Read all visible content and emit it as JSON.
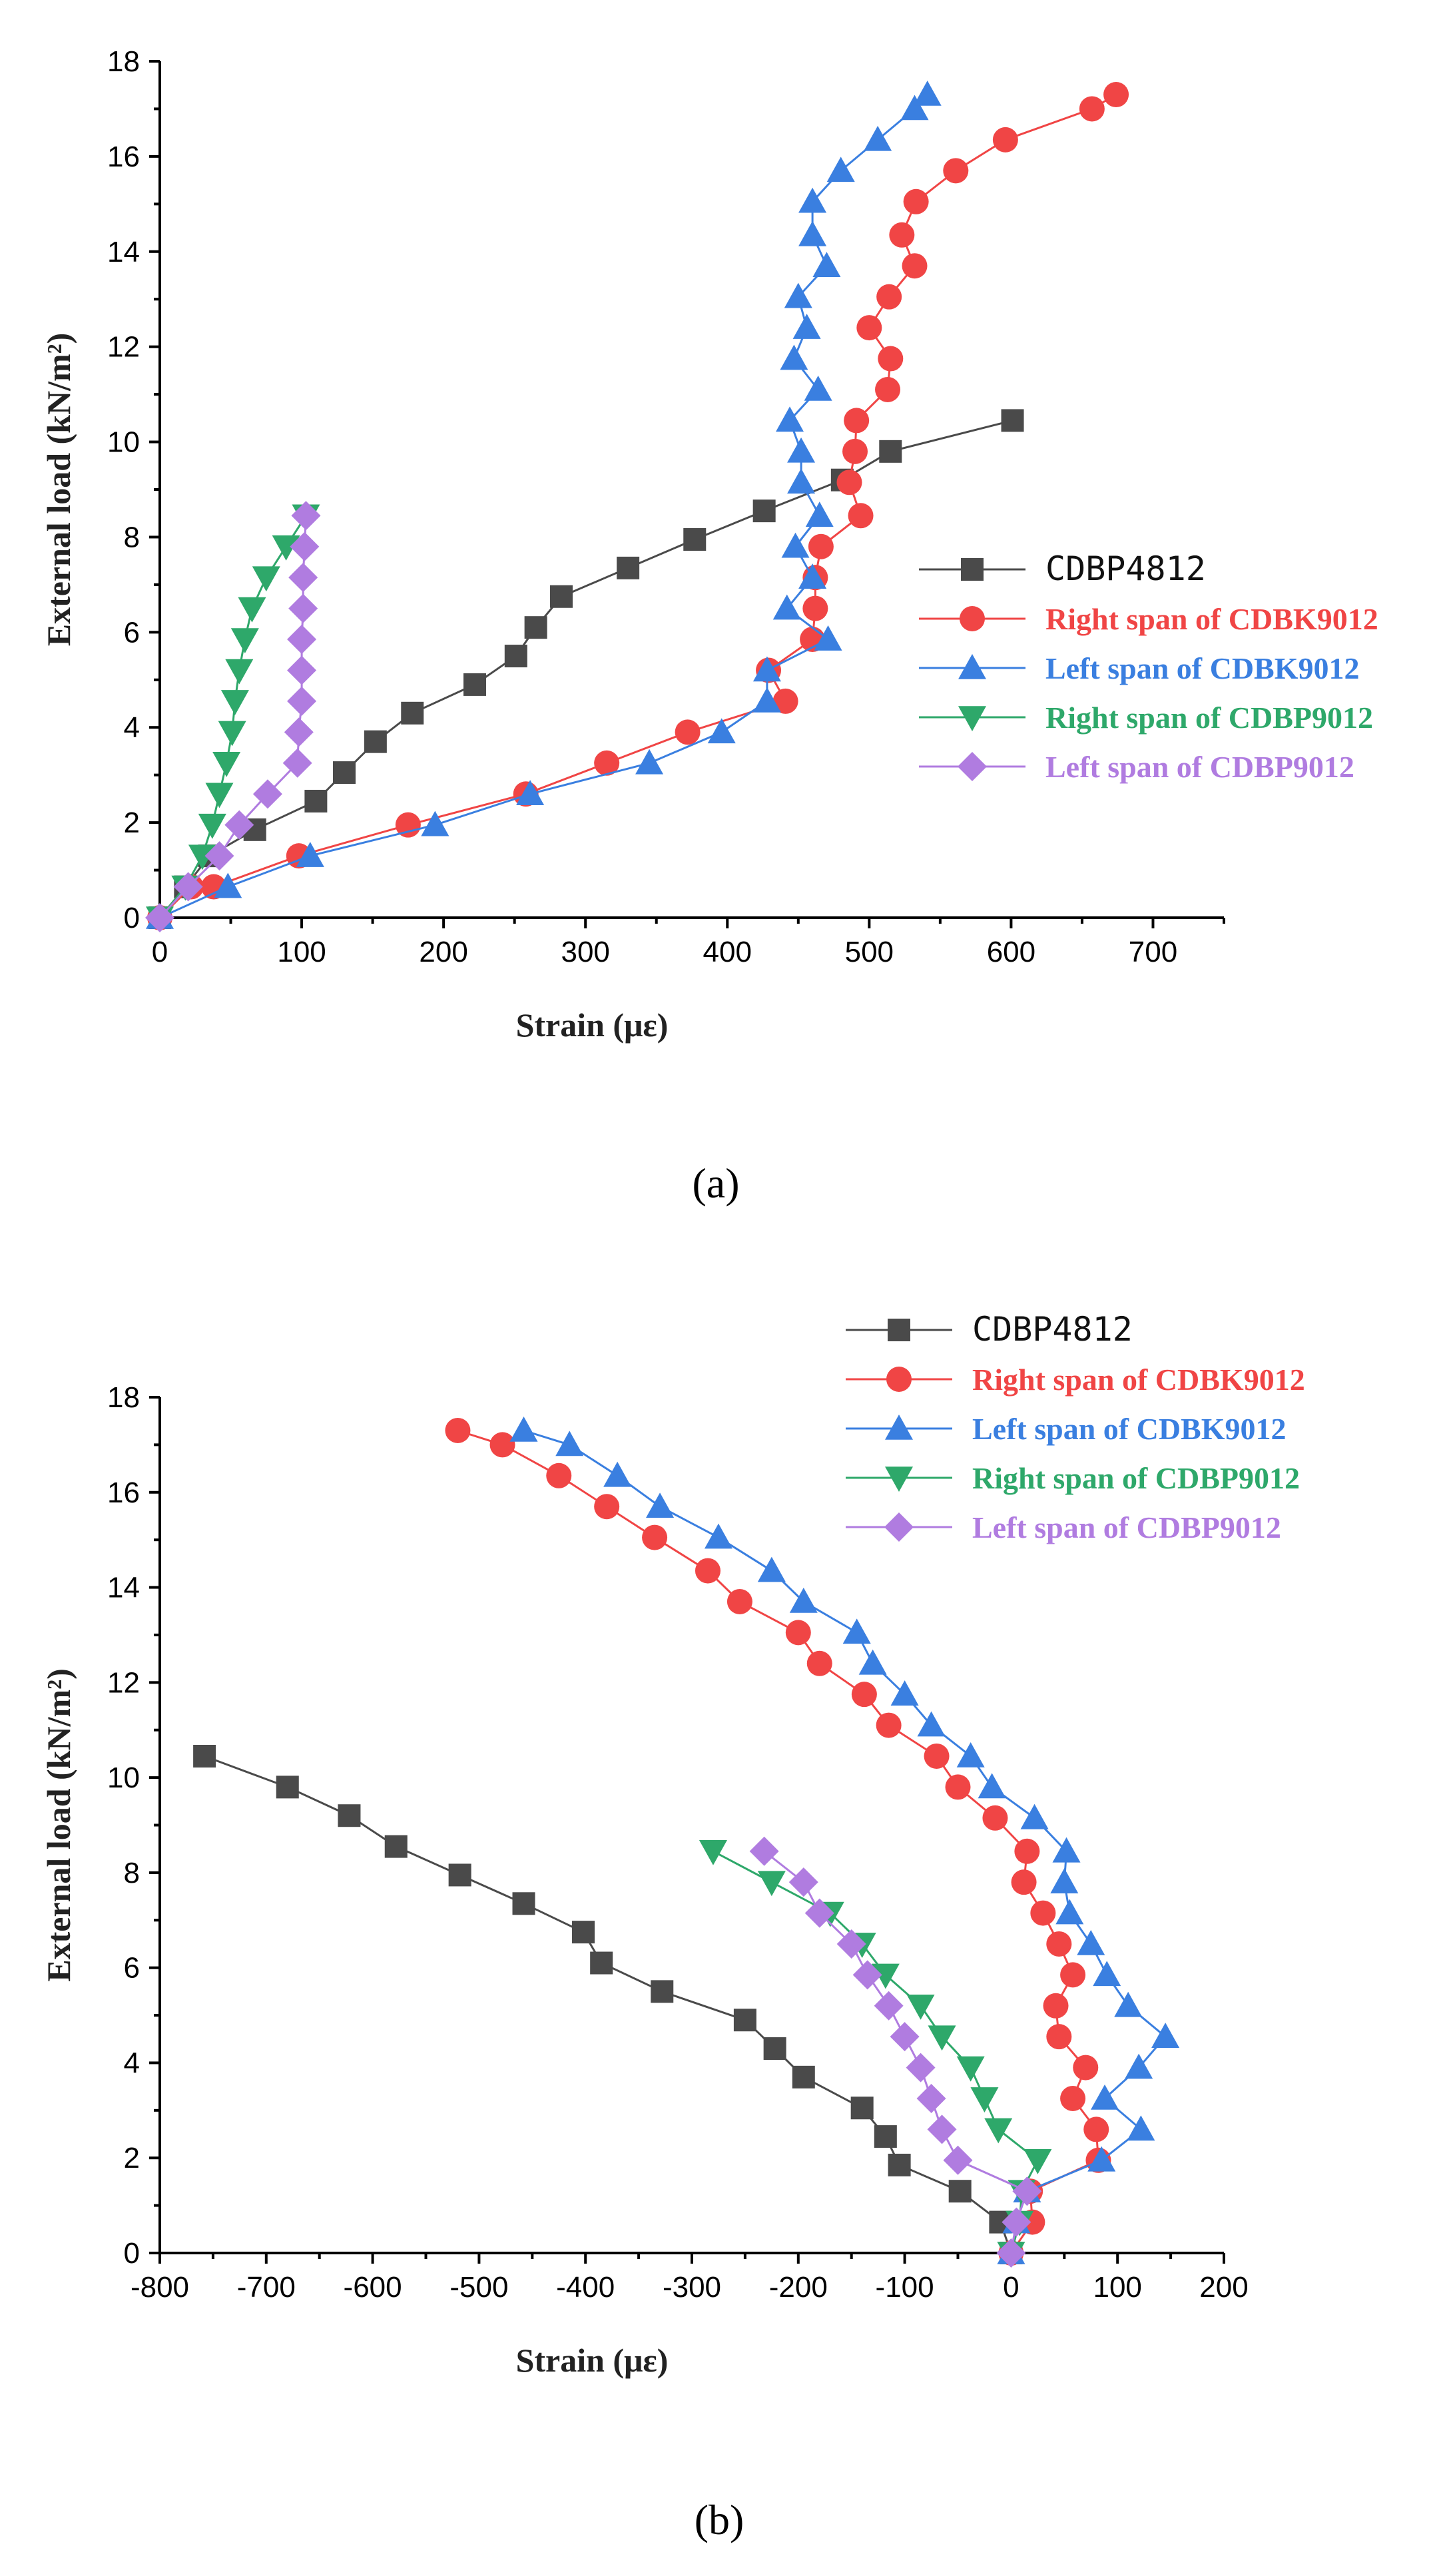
{
  "figure": {
    "caption_a": "(a)",
    "caption_b": "(b)"
  },
  "chart_data": [
    {
      "type": "line",
      "panel": "(a)",
      "title": "",
      "xlabel": "Strain (με)",
      "ylabel": "External load (kN/m²)",
      "xlim": [
        0,
        750
      ],
      "ylim": [
        0,
        18
      ],
      "xticks": [
        0,
        100,
        200,
        300,
        400,
        500,
        600,
        700
      ],
      "yticks": [
        0,
        2,
        4,
        6,
        8,
        10,
        12,
        14,
        16,
        18
      ],
      "legend_position": "center-right",
      "series": [
        {
          "name": "CDBP4812",
          "color": "#4a4a4a",
          "marker": "square",
          "points": [
            [
              0,
              0
            ],
            [
              18,
              0.65
            ],
            [
              35,
              1.3
            ],
            [
              67,
              1.85
            ],
            [
              110,
              2.45
            ],
            [
              130,
              3.05
            ],
            [
              152,
              3.7
            ],
            [
              178,
              4.3
            ],
            [
              222,
              4.9
            ],
            [
              251,
              5.5
            ],
            [
              265,
              6.1
            ],
            [
              283,
              6.75
            ],
            [
              330,
              7.35
            ],
            [
              377,
              7.95
            ],
            [
              426,
              8.55
            ],
            [
              481,
              9.2
            ],
            [
              515,
              9.8
            ],
            [
              601,
              10.45
            ]
          ]
        },
        {
          "name": "Right span of CDBK9012",
          "color": "#f04545",
          "marker": "circle",
          "points": [
            [
              0,
              0
            ],
            [
              22,
              0.65
            ],
            [
              38,
              0.65
            ],
            [
              98,
              1.3
            ],
            [
              175,
              1.95
            ],
            [
              258,
              2.6
            ],
            [
              315,
              3.25
            ],
            [
              372,
              3.9
            ],
            [
              441,
              4.55
            ],
            [
              429,
              5.2
            ],
            [
              460,
              5.85
            ],
            [
              462,
              6.5
            ],
            [
              462,
              7.15
            ],
            [
              466,
              7.8
            ],
            [
              494,
              8.45
            ],
            [
              486,
              9.15
            ],
            [
              490,
              9.8
            ],
            [
              491,
              10.45
            ],
            [
              513,
              11.1
            ],
            [
              515,
              11.75
            ],
            [
              500,
              12.4
            ],
            [
              514,
              13.05
            ],
            [
              532,
              13.7
            ],
            [
              523,
              14.35
            ],
            [
              533,
              15.05
            ],
            [
              561,
              15.7
            ],
            [
              596,
              16.35
            ],
            [
              657,
              17.0
            ],
            [
              674,
              17.3
            ]
          ]
        },
        {
          "name": "Left span of CDBK9012",
          "color": "#3a7fe0",
          "marker": "triangle-up",
          "points": [
            [
              0,
              0
            ],
            [
              48,
              0.65
            ],
            [
              106,
              1.3
            ],
            [
              194,
              1.95
            ],
            [
              261,
              2.6
            ],
            [
              345,
              3.25
            ],
            [
              396,
              3.9
            ],
            [
              428,
              4.55
            ],
            [
              428,
              5.2
            ],
            [
              471,
              5.85
            ],
            [
              442,
              6.5
            ],
            [
              460,
              7.15
            ],
            [
              448,
              7.8
            ],
            [
              465,
              8.45
            ],
            [
              452,
              9.15
            ],
            [
              452,
              9.8
            ],
            [
              444,
              10.45
            ],
            [
              464,
              11.1
            ],
            [
              447,
              11.75
            ],
            [
              456,
              12.4
            ],
            [
              450,
              13.05
            ],
            [
              470,
              13.7
            ],
            [
              460,
              14.35
            ],
            [
              460,
              15.05
            ],
            [
              480,
              15.7
            ],
            [
              506,
              16.35
            ],
            [
              532,
              17.0
            ],
            [
              541,
              17.3
            ]
          ]
        },
        {
          "name": "Right span of CDBP9012",
          "color": "#2ea86a",
          "marker": "triangle-down",
          "points": [
            [
              0,
              0
            ],
            [
              18,
              0.65
            ],
            [
              30,
              1.3
            ],
            [
              37,
              1.95
            ],
            [
              42,
              2.6
            ],
            [
              47,
              3.25
            ],
            [
              51,
              3.9
            ],
            [
              53,
              4.55
            ],
            [
              56,
              5.2
            ],
            [
              60,
              5.85
            ],
            [
              65,
              6.5
            ],
            [
              75,
              7.15
            ],
            [
              89,
              7.8
            ],
            [
              103,
              8.45
            ]
          ]
        },
        {
          "name": "Left span of CDBP9012",
          "color": "#b07ce0",
          "marker": "diamond",
          "points": [
            [
              0,
              0
            ],
            [
              20,
              0.65
            ],
            [
              42,
              1.3
            ],
            [
              56,
              1.95
            ],
            [
              76,
              2.6
            ],
            [
              97,
              3.25
            ],
            [
              98,
              3.9
            ],
            [
              100,
              4.55
            ],
            [
              100,
              5.2
            ],
            [
              100,
              5.85
            ],
            [
              101,
              6.5
            ],
            [
              101,
              7.15
            ],
            [
              102,
              7.8
            ],
            [
              103,
              8.45
            ]
          ]
        }
      ]
    },
    {
      "type": "line",
      "panel": "(b)",
      "title": "",
      "xlabel": "Strain (με)",
      "ylabel": "External load (kN/m²)",
      "xlim": [
        -800,
        200
      ],
      "ylim": [
        0,
        18
      ],
      "xticks": [
        -800,
        -700,
        -600,
        -500,
        -400,
        -300,
        -200,
        -100,
        0,
        100,
        200
      ],
      "yticks": [
        0,
        2,
        4,
        6,
        8,
        10,
        12,
        14,
        16,
        18
      ],
      "legend_position": "top-right",
      "series": [
        {
          "name": "CDBP4812",
          "color": "#4a4a4a",
          "marker": "square",
          "points": [
            [
              0,
              0
            ],
            [
              -10,
              0.65
            ],
            [
              -48,
              1.3
            ],
            [
              -105,
              1.85
            ],
            [
              -118,
              2.45
            ],
            [
              -140,
              3.05
            ],
            [
              -195,
              3.7
            ],
            [
              -222,
              4.3
            ],
            [
              -250,
              4.9
            ],
            [
              -328,
              5.5
            ],
            [
              -385,
              6.1
            ],
            [
              -402,
              6.75
            ],
            [
              -458,
              7.35
            ],
            [
              -518,
              7.95
            ],
            [
              -578,
              8.55
            ],
            [
              -622,
              9.2
            ],
            [
              -680,
              9.8
            ],
            [
              -758,
              10.45
            ]
          ]
        },
        {
          "name": "Right span of CDBK9012",
          "color": "#f04545",
          "marker": "circle",
          "points": [
            [
              0,
              0
            ],
            [
              20,
              0.65
            ],
            [
              18,
              1.3
            ],
            [
              82,
              1.95
            ],
            [
              80,
              2.6
            ],
            [
              58,
              3.25
            ],
            [
              70,
              3.9
            ],
            [
              45,
              4.55
            ],
            [
              42,
              5.2
            ],
            [
              58,
              5.85
            ],
            [
              45,
              6.5
            ],
            [
              30,
              7.15
            ],
            [
              12,
              7.8
            ],
            [
              15,
              8.45
            ],
            [
              -15,
              9.15
            ],
            [
              -50,
              9.8
            ],
            [
              -70,
              10.45
            ],
            [
              -115,
              11.1
            ],
            [
              -138,
              11.75
            ],
            [
              -180,
              12.4
            ],
            [
              -200,
              13.05
            ],
            [
              -255,
              13.7
            ],
            [
              -285,
              14.35
            ],
            [
              -335,
              15.05
            ],
            [
              -380,
              15.7
            ],
            [
              -425,
              16.35
            ],
            [
              -478,
              17.0
            ],
            [
              -520,
              17.3
            ]
          ]
        },
        {
          "name": "Left span of CDBK9012",
          "color": "#3a7fe0",
          "marker": "triangle-up",
          "points": [
            [
              0,
              0
            ],
            [
              5,
              0.65
            ],
            [
              15,
              1.3
            ],
            [
              85,
              1.95
            ],
            [
              122,
              2.6
            ],
            [
              88,
              3.25
            ],
            [
              120,
              3.9
            ],
            [
              145,
              4.55
            ],
            [
              110,
              5.2
            ],
            [
              90,
              5.85
            ],
            [
              75,
              6.5
            ],
            [
              55,
              7.15
            ],
            [
              50,
              7.8
            ],
            [
              52,
              8.45
            ],
            [
              22,
              9.15
            ],
            [
              -18,
              9.8
            ],
            [
              -38,
              10.45
            ],
            [
              -75,
              11.1
            ],
            [
              -100,
              11.75
            ],
            [
              -130,
              12.4
            ],
            [
              -145,
              13.05
            ],
            [
              -195,
              13.7
            ],
            [
              -225,
              14.35
            ],
            [
              -275,
              15.05
            ],
            [
              -330,
              15.7
            ],
            [
              -370,
              16.35
            ],
            [
              -415,
              17.0
            ],
            [
              -458,
              17.3
            ]
          ]
        },
        {
          "name": "Right span of CDBP9012",
          "color": "#2ea86a",
          "marker": "triangle-down",
          "points": [
            [
              0,
              0
            ],
            [
              8,
              0.65
            ],
            [
              10,
              1.3
            ],
            [
              25,
              1.95
            ],
            [
              -12,
              2.6
            ],
            [
              -25,
              3.25
            ],
            [
              -38,
              3.9
            ],
            [
              -65,
              4.55
            ],
            [
              -85,
              5.2
            ],
            [
              -118,
              5.85
            ],
            [
              -140,
              6.5
            ],
            [
              -170,
              7.15
            ],
            [
              -225,
              7.8
            ],
            [
              -280,
              8.45
            ]
          ]
        },
        {
          "name": "Left span of CDBP9012",
          "color": "#b07ce0",
          "marker": "diamond",
          "points": [
            [
              0,
              0
            ],
            [
              5,
              0.65
            ],
            [
              15,
              1.3
            ],
            [
              -50,
              1.95
            ],
            [
              -65,
              2.6
            ],
            [
              -75,
              3.25
            ],
            [
              -85,
              3.9
            ],
            [
              -100,
              4.55
            ],
            [
              -115,
              5.2
            ],
            [
              -135,
              5.85
            ],
            [
              -150,
              6.5
            ],
            [
              -180,
              7.15
            ],
            [
              -195,
              7.8
            ],
            [
              -232,
              8.45
            ]
          ]
        }
      ]
    }
  ]
}
